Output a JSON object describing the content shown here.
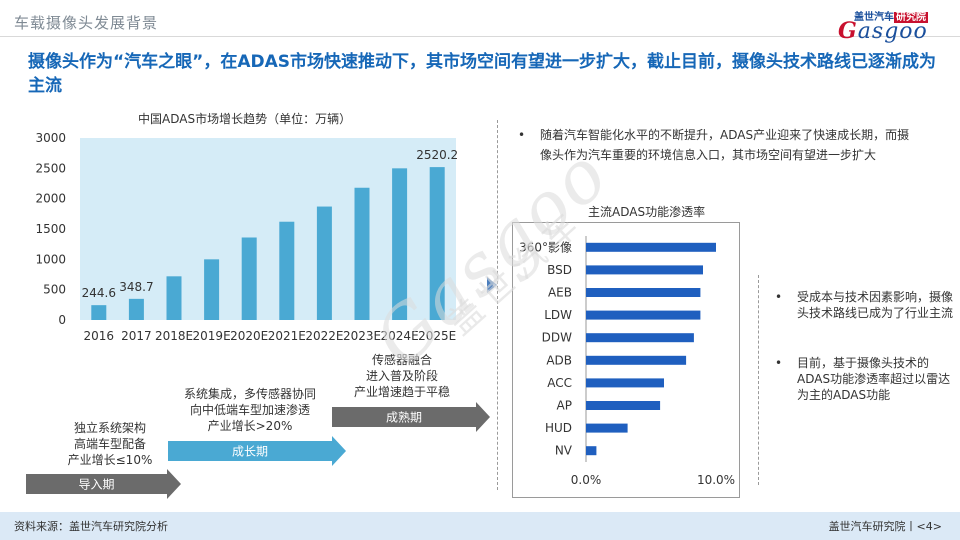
{
  "header": {
    "section_title": "车载摄像头发展背景",
    "logo_cn": "盖世汽车",
    "logo_cn_red": "研究院",
    "logo_en_first": "G",
    "logo_en_rest": "asgoo"
  },
  "headline": "摄像头作为“汽车之眼”，在ADAS市场快速推动下，其市场空间有望进一步扩大，截止目前，摄像头技术路线已逐渐成为主流",
  "left_chart": {
    "title": "中国ADAS市场增长趋势（单位：万辆）"
  },
  "chart_data": [
    {
      "type": "bar",
      "title": "中国ADAS市场增长趋势（单位：万辆）",
      "categories": [
        "2016",
        "2017",
        "2018E",
        "2019E",
        "2020E",
        "2021E",
        "2022E",
        "2023E",
        "2024E",
        "2025E"
      ],
      "values": [
        244.6,
        348.7,
        720,
        1000,
        1360,
        1620,
        1870,
        2180,
        2500,
        2520.2
      ],
      "data_labels": [
        "244.6",
        "348.7",
        "",
        "",
        "",
        "",
        "",
        "",
        "",
        "2520.2"
      ],
      "ylim": [
        0,
        3000
      ],
      "yticks": [
        "0",
        "500",
        "1000",
        "1500",
        "2000",
        "2500",
        "3000"
      ],
      "colors": {
        "bar": "#4aa9d3",
        "plot_bg": "#d5ecf7"
      }
    },
    {
      "type": "bar",
      "orientation": "horizontal",
      "title": "主流ADAS功能渗透率",
      "categories": [
        "360°影像",
        "BSD",
        "AEB",
        "LDW",
        "DDW",
        "ADB",
        "ACC",
        "AP",
        "HUD",
        "NV"
      ],
      "values": [
        10.0,
        9.0,
        8.8,
        8.8,
        8.3,
        7.7,
        6.0,
        5.7,
        3.2,
        0.8
      ],
      "unit": "%",
      "xlim": [
        0,
        12
      ],
      "xticks": [
        "0.0%",
        "10.0%"
      ],
      "colors": {
        "bar": "#1f5fbf"
      }
    }
  ],
  "stages": [
    {
      "label": "导入期",
      "lines": [
        "独立系统架构",
        "高端车型配备",
        "产业增长≤10%"
      ],
      "color": "#6b6b6b"
    },
    {
      "label": "成长期",
      "lines": [
        "系统集成，多传感器协同",
        "向中低端车型加速渗透",
        "产业增长>20%"
      ],
      "color": "#4aa9d3"
    },
    {
      "label": "成熟期",
      "lines": [
        "传感器融合",
        "进入普及阶段",
        "产业增速趋于平稳"
      ],
      "color": "#6b6b6b"
    }
  ],
  "right_top_bullet": {
    "mark": "•",
    "text": "随着汽车智能化水平的不断提升，ADAS产业迎来了快速成长期，而摄像头作为汽车重要的环境信息入口，其市场空间有望进一步扩大"
  },
  "right_bullets": [
    {
      "mark": "•",
      "text": "受成本与技术因素影响，摄像头技术路线已成为了行业主流"
    },
    {
      "mark": "•",
      "text": "目前，基于摄像头技术的ADAS功能渗透率超过以雷达为主的ADAS功能"
    }
  ],
  "watermark": {
    "en": "Gasgoo",
    "cn": "盖世汽车"
  },
  "footer": {
    "source": "资料来源：盖世汽车研究院分析",
    "page": "盖世汽车研究院丨<4>"
  }
}
